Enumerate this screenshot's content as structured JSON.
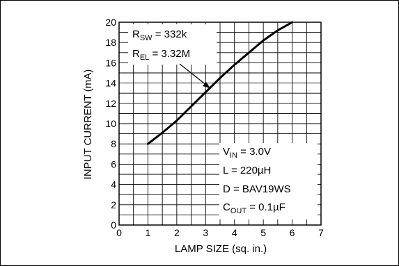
{
  "chart_data": {
    "type": "line",
    "xlabel": "LAMP SIZE (sq. in.)",
    "ylabel": "INPUT CURRENT (mA)",
    "xlim": [
      0,
      7
    ],
    "ylim": [
      0,
      20
    ],
    "x_ticks": [
      "0",
      "1",
      "2",
      "3",
      "4",
      "5",
      "6",
      "7"
    ],
    "y_ticks": [
      "0",
      "2",
      "4",
      "6",
      "8",
      "10",
      "12",
      "14",
      "16",
      "18",
      "20"
    ],
    "grid": true,
    "series": [
      {
        "x": [
          1.0,
          1.5,
          2.0,
          2.5,
          3.0,
          3.5,
          4.0,
          4.5,
          5.0,
          5.5,
          6.0
        ],
        "values": [
          8.0,
          9.1,
          10.3,
          11.7,
          13.1,
          14.5,
          15.8,
          17.0,
          18.2,
          19.2,
          20.0
        ]
      }
    ],
    "annotations": {
      "rsw": {
        "main": "R",
        "sub": "SW",
        "rest": " = 332k"
      },
      "rel": {
        "main": "R",
        "sub": "EL",
        "rest": " = 3.32M"
      },
      "vin": {
        "main": "V",
        "sub": "IN",
        "rest": " = 3.0V"
      },
      "inductor": "L = 220µH",
      "diode": "D = BAV19WS",
      "cout": {
        "main": "C",
        "sub": "OUT",
        "rest": " = 0.1µF"
      }
    }
  }
}
